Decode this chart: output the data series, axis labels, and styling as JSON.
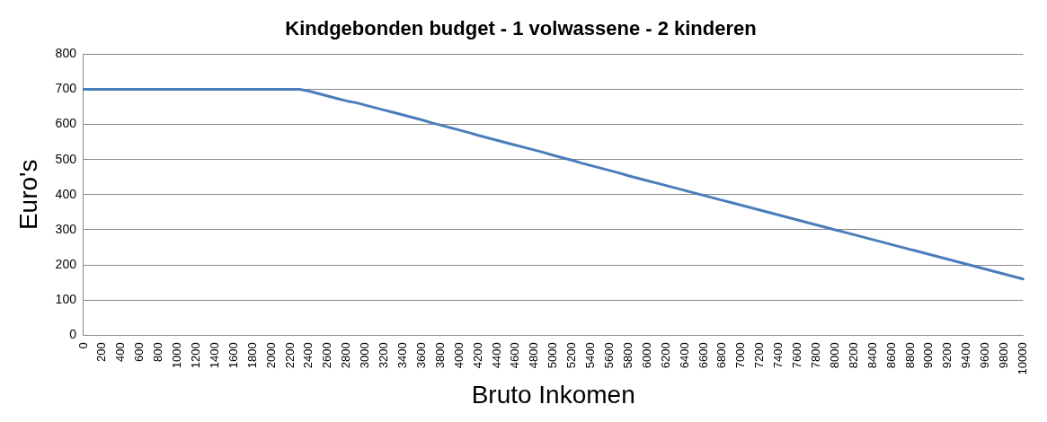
{
  "chart_data": {
    "type": "line",
    "title": "Kindgebonden budget - 1 volwassene - 2 kinderen",
    "xlabel": "Bruto Inkomen",
    "ylabel": "Euro's",
    "categories": [
      "0",
      null,
      "200",
      null,
      "400",
      null,
      "600",
      null,
      "800",
      null,
      "1000",
      null,
      "1200",
      null,
      "1400",
      null,
      "1600",
      null,
      "1800",
      null,
      "2000",
      null,
      "2200",
      null,
      "2400",
      null,
      "2600",
      null,
      "2800",
      null,
      "3000",
      null,
      "3200",
      null,
      "3400",
      null,
      "3600",
      null,
      "3800",
      null,
      "4000",
      null,
      "4200",
      null,
      "4400",
      null,
      "4600",
      null,
      "4800",
      null,
      "5000",
      null,
      "5200",
      null,
      "5400",
      null,
      "5600",
      null,
      "5800",
      null,
      "6000",
      null,
      "6200",
      null,
      "6400",
      null,
      "6600",
      null,
      "6800",
      null,
      "7000",
      null,
      "7200",
      null,
      "7400",
      null,
      "7600",
      null,
      "7800",
      null,
      "8000",
      null,
      "8200",
      null,
      "8400",
      null,
      "8600",
      null,
      "8800",
      null,
      "9000",
      null,
      "9200",
      null,
      "9400",
      null,
      "9600",
      null,
      "9800",
      null,
      "10000"
    ],
    "series": [
      {
        "color": "#4a7ebb",
        "values": [
          700,
          700,
          700,
          700,
          700,
          700,
          700,
          700,
          700,
          700,
          700,
          700,
          700,
          700,
          700,
          700,
          700,
          700,
          700,
          700,
          700,
          700,
          700,
          700,
          695,
          688,
          681,
          674,
          667,
          662,
          655,
          648,
          641,
          634,
          627,
          620,
          613,
          605,
          598,
          591,
          584,
          577,
          569,
          562,
          555,
          548,
          541,
          534,
          527,
          520,
          512,
          505,
          498,
          490,
          483,
          476,
          469,
          462,
          454,
          447,
          440,
          433,
          426,
          419,
          412,
          405,
          398,
          391,
          384,
          377,
          370,
          363,
          356,
          349,
          342,
          335,
          328,
          321,
          314,
          307,
          300,
          293,
          286,
          279,
          272,
          265,
          258,
          251,
          244,
          237,
          230,
          223,
          216,
          209,
          202,
          195,
          188,
          181,
          174,
          167,
          160
        ]
      }
    ],
    "ylim": [
      0,
      800
    ],
    "yticks": [
      0,
      100,
      200,
      300,
      400,
      500,
      600,
      700,
      800
    ],
    "grid": "y",
    "legend": false,
    "marker": "none",
    "line_style": "solid"
  }
}
